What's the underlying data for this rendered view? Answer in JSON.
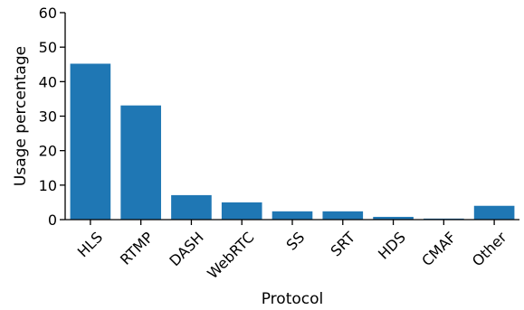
{
  "chart_data": {
    "type": "bar",
    "title": "",
    "xlabel": "Protocol",
    "ylabel": "Usage percentage",
    "categories": [
      "HLS",
      "RTMP",
      "DASH",
      "WebRTC",
      "SS",
      "SRT",
      "HDS",
      "CMAF",
      "Other"
    ],
    "values": [
      45.2,
      33.1,
      7.1,
      5.0,
      2.4,
      2.4,
      0.8,
      0.3,
      4.0
    ],
    "ylim": [
      0,
      60
    ],
    "yticks": [
      0,
      10,
      20,
      30,
      40,
      50,
      60
    ],
    "grid": false,
    "legend": "none",
    "bar_color": "#1f77b4"
  }
}
